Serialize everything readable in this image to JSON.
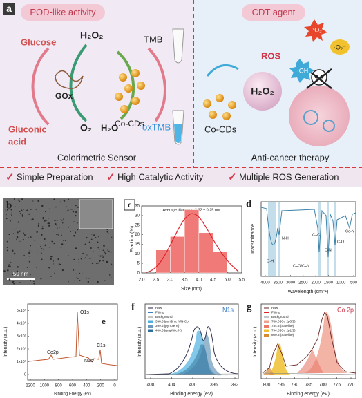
{
  "panel_a": {
    "label": "a",
    "left_title": "POD-like activity",
    "right_title": "CDT agent",
    "glucose": "Glucose",
    "h2o2_left": "H₂O₂",
    "tmb": "TMB",
    "gox": "GOx",
    "co_cds_left": "Co-CDs",
    "gluconic_acid": [
      "Gluconic",
      "acid"
    ],
    "o2": "O₂",
    "h2o": "H₂O",
    "oxtmb": "oxTMB",
    "left_caption": "Colorimetric Sensor",
    "ros": "ROS",
    "singlet_oxygen": "¹O₂",
    "hydroxyl": "·OH",
    "superoxide": "·O₂⁻",
    "co_cds_right": "Co-CDs",
    "h2o2_right": "H₂O₂",
    "right_caption": "Anti-cancer therapy",
    "features": [
      "Simple Preparation",
      "High Catalytic Activity",
      "Multiple ROS Generation"
    ]
  },
  "panel_b": {
    "label": "b",
    "scale_bar": "50 nm"
  },
  "panel_c": {
    "label": "c",
    "annotation": "Average diameter: 3.62 ± 0.25 nm",
    "y_label": "Fraction (%)",
    "x_label": "Size (nm)",
    "bins": [
      2.5,
      3.0,
      3.5,
      4.0,
      4.5,
      5.0
    ],
    "values": [
      12,
      19,
      33,
      21,
      11
    ],
    "xlim": [
      2.0,
      5.5
    ],
    "ylim": [
      0,
      35
    ],
    "xticks": [
      "2.0",
      "2.5",
      "3.0",
      "3.5",
      "4.0",
      "4.5",
      "5.0",
      "5.5"
    ],
    "yticks": [
      0,
      5,
      10,
      15,
      20,
      25,
      30,
      35
    ]
  },
  "panel_d": {
    "label": "d",
    "y_label": "Transmittance",
    "x_label": "Wavelength (cm⁻¹)",
    "xticks": [
      "4000",
      "3500",
      "3000",
      "2500",
      "2000",
      "1500",
      "1000",
      "500"
    ],
    "bands": [
      "O-H",
      "N-H",
      "C=O/C=N",
      "C=C",
      "C-N",
      "C-O",
      "Co-N"
    ]
  },
  "panel_e": {
    "label": "e",
    "y_label": "Intensity (a.u.)",
    "x_label": "Binding Energy (eV)",
    "yticks": [
      "0",
      "1x10⁵",
      "2x10⁵",
      "3x10⁵",
      "4x10⁵",
      "5x10⁵"
    ],
    "xticks": [
      "1200",
      "1000",
      "800",
      "600",
      "400",
      "200",
      "0"
    ],
    "peaks": [
      "O1s",
      "C1s",
      "N1s",
      "Co2p"
    ]
  },
  "panel_f": {
    "label": "f",
    "title": "N1s",
    "legend": [
      "Raw",
      "Fitting",
      "Background",
      "398.6 (pyridinic N/N-Co)",
      "399.5 (pyrrole N)",
      "400.6 (graphitic N)"
    ],
    "y_label": "Intensity (a.u.)",
    "x_label": "Binding energy (eV)",
    "xticks": [
      "408",
      "404",
      "400",
      "396",
      "392"
    ]
  },
  "panel_g": {
    "label": "g",
    "title": "Co 2p",
    "legend": [
      "Raw",
      "Fitting",
      "Background",
      "780.0 (Co 2p3/2)",
      "784.8 (Satellite)",
      "794.8 (Co 2p1/2)",
      "800.3 (Satellite)"
    ],
    "y_label": "Intensity (a.u.)",
    "x_label": "Binding energy (eV)",
    "xticks": [
      "800",
      "795",
      "790",
      "785",
      "780",
      "775",
      "770"
    ]
  }
}
